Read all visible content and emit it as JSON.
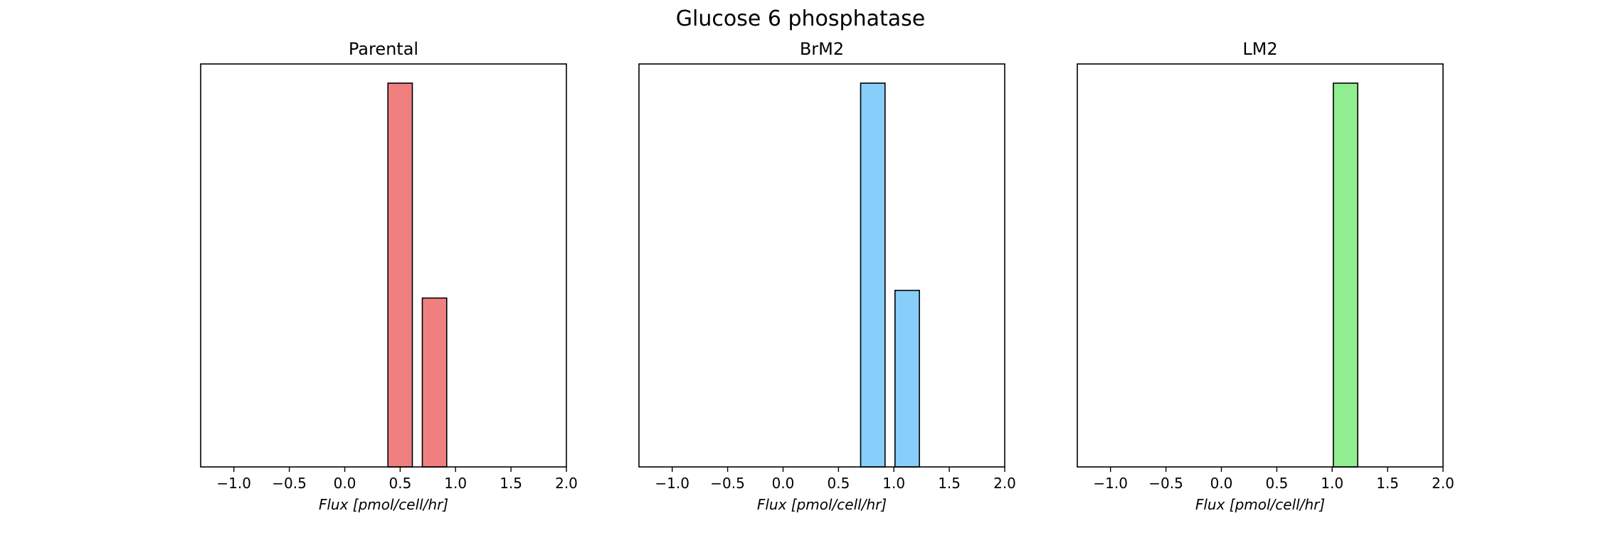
{
  "suptitle": "Glucose 6 phosphatase",
  "chart_data": [
    {
      "type": "bar",
      "title": "Parental",
      "xlabel": "Flux [pmol/cell/hr]",
      "ylabel": "",
      "xlim": [
        -1.3,
        2.0
      ],
      "ylim": [
        0,
        1.05
      ],
      "xticks": [
        -1.0,
        -0.5,
        0.0,
        0.5,
        1.0,
        1.5,
        2.0
      ],
      "xtick_labels": [
        "−1.0",
        "−0.5",
        "0.0",
        "0.5",
        "1.0",
        "1.5",
        "2.0"
      ],
      "bin_width": 0.22,
      "bars": [
        {
          "x": 0.5,
          "value": 1.0
        },
        {
          "x": 0.81,
          "value": 0.44
        }
      ],
      "color": "#f08080",
      "edgecolor": "#000000"
    },
    {
      "type": "bar",
      "title": "BrM2",
      "xlabel": "Flux [pmol/cell/hr]",
      "ylabel": "",
      "xlim": [
        -1.3,
        2.0
      ],
      "ylim": [
        0,
        1.05
      ],
      "xticks": [
        -1.0,
        -0.5,
        0.0,
        0.5,
        1.0,
        1.5,
        2.0
      ],
      "xtick_labels": [
        "−1.0",
        "−0.5",
        "0.0",
        "0.5",
        "1.0",
        "1.5",
        "2.0"
      ],
      "bin_width": 0.22,
      "bars": [
        {
          "x": 0.81,
          "value": 1.0
        },
        {
          "x": 1.12,
          "value": 0.46
        }
      ],
      "color": "#87cefa",
      "edgecolor": "#000000"
    },
    {
      "type": "bar",
      "title": "LM2",
      "xlabel": "Flux [pmol/cell/hr]",
      "ylabel": "",
      "xlim": [
        -1.3,
        2.0
      ],
      "ylim": [
        0,
        1.05
      ],
      "xticks": [
        -1.0,
        -0.5,
        0.0,
        0.5,
        1.0,
        1.5,
        2.0
      ],
      "xtick_labels": [
        "−1.0",
        "−0.5",
        "0.0",
        "0.5",
        "1.0",
        "1.5",
        "2.0"
      ],
      "bin_width": 0.22,
      "bars": [
        {
          "x": 1.12,
          "value": 1.0
        }
      ],
      "color": "#90ee90",
      "edgecolor": "#000000"
    }
  ]
}
